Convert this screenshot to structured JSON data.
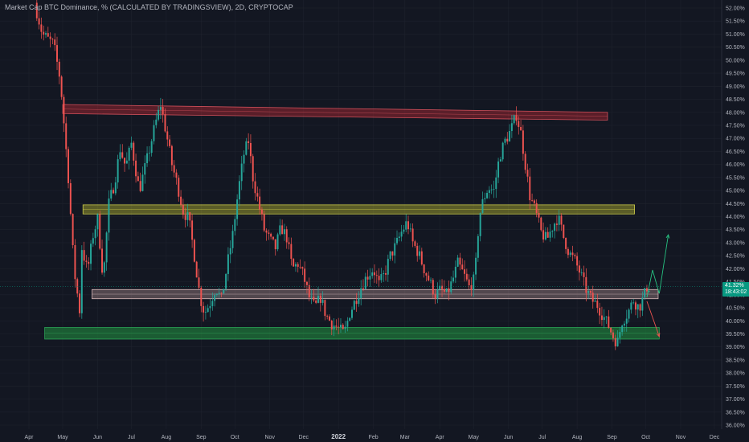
{
  "header": {
    "title": "Market Cap BTC Dominance, % (CALCULATED BY TRADINGSVIEW), 2D, CRYPTOCAP"
  },
  "price_tag": {
    "value": "41.32%",
    "countdown": "18:43:02"
  },
  "colors": {
    "background": "#131722",
    "grid": "#1e222d",
    "up": "#26a69a",
    "down": "#ef5350",
    "axis_text": "#b2b5be",
    "tag": "#089981",
    "zone_red": "#b22833",
    "zone_yellow": "#c8c832",
    "zone_pink": "#c8a0a0",
    "zone_green": "#1f7a3a",
    "arrow_up": "#26c281",
    "arrow_down": "#ef5350"
  },
  "chart_data": {
    "type": "candlestick",
    "title": "Market Cap BTC Dominance, % (CALCULATED BY TRADINGSVIEW), 2D, CRYPTOCAP",
    "y_unit": "%",
    "ylim": [
      35.9,
      52.3
    ],
    "y_ticks": [
      "52.00%",
      "51.50%",
      "51.00%",
      "50.50%",
      "50.00%",
      "49.50%",
      "49.00%",
      "48.50%",
      "48.00%",
      "47.50%",
      "47.00%",
      "46.50%",
      "46.00%",
      "45.50%",
      "45.00%",
      "44.50%",
      "44.00%",
      "43.50%",
      "43.00%",
      "42.50%",
      "42.00%",
      "41.50%",
      "41.00%",
      "40.50%",
      "40.00%",
      "39.50%",
      "39.00%",
      "38.50%",
      "38.00%",
      "37.50%",
      "37.00%",
      "36.50%",
      "36.00%"
    ],
    "x_ticks": [
      "Apr",
      "May",
      "Jun",
      "Jul",
      "Aug",
      "Sep",
      "Oct",
      "Nov",
      "Dec",
      "2022",
      "Feb",
      "Mar",
      "Apr",
      "May",
      "Jun",
      "Jul",
      "Aug",
      "Sep",
      "Oct",
      "Nov",
      "Dec"
    ],
    "x_ticks_bold": [
      "2022"
    ],
    "x_tick_dates": [
      "2021-04-01",
      "2021-05-01",
      "2021-06-01",
      "2021-07-01",
      "2021-08-01",
      "2021-09-01",
      "2021-10-01",
      "2021-11-01",
      "2021-12-01",
      "2022-01-01",
      "2022-02-01",
      "2022-03-01",
      "2022-04-01",
      "2022-05-01",
      "2022-06-01",
      "2022-07-01",
      "2022-08-01",
      "2022-09-01",
      "2022-10-01",
      "2022-11-01",
      "2022-12-01"
    ],
    "x_range": [
      "2021-04-01",
      "2022-12-01"
    ],
    "grid": true,
    "legend": "none",
    "path": [
      [
        "2021-04-08",
        52.2
      ],
      [
        "2021-04-15",
        51.0
      ],
      [
        "2021-04-25",
        50.6
      ],
      [
        "2021-05-01",
        49.2
      ],
      [
        "2021-05-08",
        45.5
      ],
      [
        "2021-05-13",
        42.0
      ],
      [
        "2021-05-18",
        40.4
      ],
      [
        "2021-05-20",
        42.8
      ],
      [
        "2021-05-25",
        41.9
      ],
      [
        "2021-05-30",
        43.3
      ],
      [
        "2021-06-03",
        43.9
      ],
      [
        "2021-06-08",
        41.6
      ],
      [
        "2021-06-13",
        44.5
      ],
      [
        "2021-06-18",
        45.3
      ],
      [
        "2021-06-23",
        46.6
      ],
      [
        "2021-06-28",
        45.9
      ],
      [
        "2021-07-03",
        46.8
      ],
      [
        "2021-07-10",
        45.0
      ],
      [
        "2021-07-17",
        46.2
      ],
      [
        "2021-07-24",
        47.5
      ],
      [
        "2021-07-29",
        48.3
      ],
      [
        "2021-08-03",
        47.2
      ],
      [
        "2021-08-08",
        46.0
      ],
      [
        "2021-08-13",
        45.2
      ],
      [
        "2021-08-18",
        44.2
      ],
      [
        "2021-08-23",
        43.9
      ],
      [
        "2021-08-28",
        42.5
      ],
      [
        "2021-09-02",
        40.9
      ],
      [
        "2021-09-06",
        40.3
      ],
      [
        "2021-09-11",
        40.7
      ],
      [
        "2021-09-16",
        41.3
      ],
      [
        "2021-09-21",
        40.8
      ],
      [
        "2021-09-26",
        42.1
      ],
      [
        "2021-10-01",
        43.3
      ],
      [
        "2021-10-06",
        45.0
      ],
      [
        "2021-10-11",
        46.4
      ],
      [
        "2021-10-15",
        46.9
      ],
      [
        "2021-10-19",
        45.5
      ],
      [
        "2021-10-24",
        44.5
      ],
      [
        "2021-10-29",
        43.5
      ],
      [
        "2021-11-03",
        43.1
      ],
      [
        "2021-11-08",
        42.8
      ],
      [
        "2021-11-13",
        43.6
      ],
      [
        "2021-11-18",
        43.2
      ],
      [
        "2021-11-23",
        42.0
      ],
      [
        "2021-11-28",
        42.2
      ],
      [
        "2021-12-03",
        41.7
      ],
      [
        "2021-12-08",
        40.9
      ],
      [
        "2021-12-13",
        40.5
      ],
      [
        "2021-12-18",
        40.9
      ],
      [
        "2021-12-23",
        40.2
      ],
      [
        "2021-12-28",
        39.9
      ],
      [
        "2022-01-03",
        39.7
      ],
      [
        "2022-01-08",
        39.5
      ],
      [
        "2022-01-13",
        40.3
      ],
      [
        "2022-01-18",
        40.8
      ],
      [
        "2022-01-23",
        41.3
      ],
      [
        "2022-01-28",
        41.7
      ],
      [
        "2022-02-03",
        42.0
      ],
      [
        "2022-02-08",
        41.4
      ],
      [
        "2022-02-13",
        41.8
      ],
      [
        "2022-02-18",
        42.5
      ],
      [
        "2022-02-23",
        42.9
      ],
      [
        "2022-02-28",
        43.4
      ],
      [
        "2022-03-05",
        43.8
      ],
      [
        "2022-03-10",
        43.0
      ],
      [
        "2022-03-15",
        42.6
      ],
      [
        "2022-03-20",
        42.0
      ],
      [
        "2022-03-25",
        41.5
      ],
      [
        "2022-03-30",
        41.0
      ],
      [
        "2022-04-04",
        41.2
      ],
      [
        "2022-04-09",
        41.0
      ],
      [
        "2022-04-14",
        41.5
      ],
      [
        "2022-04-19",
        42.2
      ],
      [
        "2022-04-24",
        41.8
      ],
      [
        "2022-04-29",
        41.3
      ],
      [
        "2022-05-04",
        41.6
      ],
      [
        "2022-05-08",
        44.0
      ],
      [
        "2022-05-12",
        44.7
      ],
      [
        "2022-05-16",
        45.1
      ],
      [
        "2022-05-21",
        45.0
      ],
      [
        "2022-05-26",
        46.3
      ],
      [
        "2022-05-31",
        46.9
      ],
      [
        "2022-06-05",
        47.3
      ],
      [
        "2022-06-10",
        47.9
      ],
      [
        "2022-06-14",
        47.2
      ],
      [
        "2022-06-18",
        46.0
      ],
      [
        "2022-06-22",
        44.8
      ],
      [
        "2022-06-27",
        44.2
      ],
      [
        "2022-07-02",
        43.4
      ],
      [
        "2022-07-07",
        43.1
      ],
      [
        "2022-07-12",
        43.6
      ],
      [
        "2022-07-17",
        44.0
      ],
      [
        "2022-07-22",
        43.2
      ],
      [
        "2022-07-27",
        42.6
      ],
      [
        "2022-08-01",
        42.3
      ],
      [
        "2022-08-06",
        41.8
      ],
      [
        "2022-08-11",
        41.2
      ],
      [
        "2022-08-16",
        40.8
      ],
      [
        "2022-08-21",
        40.6
      ],
      [
        "2022-08-26",
        40.2
      ],
      [
        "2022-08-31",
        39.8
      ],
      [
        "2022-09-05",
        39.3
      ],
      [
        "2022-09-08",
        39.2
      ],
      [
        "2022-09-12",
        40.0
      ],
      [
        "2022-09-17",
        40.3
      ],
      [
        "2022-09-22",
        40.8
      ],
      [
        "2022-09-27",
        40.5
      ],
      [
        "2022-10-01",
        40.9
      ],
      [
        "2022-10-04",
        41.3
      ]
    ],
    "annotations": [
      {
        "kind": "zone",
        "label": "",
        "color": "red",
        "x": [
          "2021-05-01",
          "2022-08-28"
        ],
        "y_start": [
          48.3,
          48.0
        ],
        "y_end": [
          47.95,
          47.7
        ]
      },
      {
        "kind": "zone",
        "label": "",
        "color": "yellow",
        "x": [
          "2021-05-19",
          "2022-09-21"
        ],
        "y_start": [
          44.45,
          44.45
        ],
        "y_end": [
          44.1,
          44.1
        ]
      },
      {
        "kind": "zone",
        "label": "",
        "color": "pink",
        "x": [
          "2021-05-27",
          "2022-10-12"
        ],
        "y_start": [
          41.2,
          41.2
        ],
        "y_end": [
          40.85,
          40.85
        ]
      },
      {
        "kind": "zone",
        "label": "",
        "color": "green",
        "x": [
          "2021-04-15",
          "2022-10-13"
        ],
        "y_start": [
          39.75,
          39.75
        ],
        "y_end": [
          39.3,
          39.3
        ]
      },
      {
        "kind": "arrow",
        "color": "green",
        "points": [
          [
            "2022-10-02",
            40.9
          ],
          [
            "2022-10-07",
            41.95
          ],
          [
            "2022-10-13",
            41.05
          ],
          [
            "2022-10-21",
            43.3
          ]
        ]
      },
      {
        "kind": "arrow",
        "color": "red",
        "points": [
          [
            "2022-10-02",
            40.75
          ],
          [
            "2022-10-13",
            39.4
          ]
        ]
      }
    ]
  }
}
